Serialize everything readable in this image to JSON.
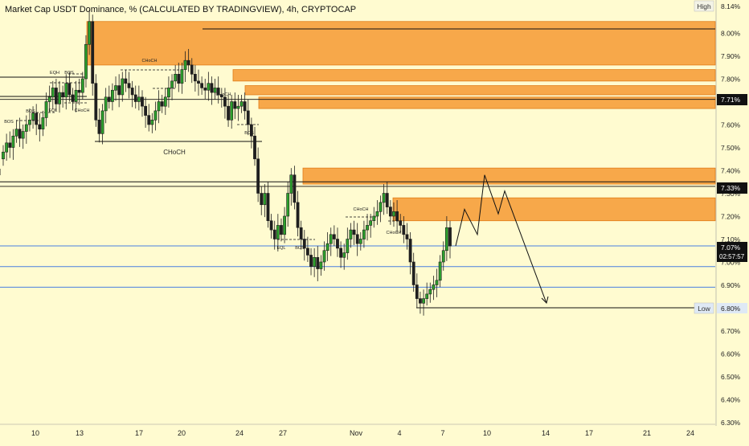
{
  "header": {
    "title": "Market Cap USDT Dominance, % (CALCULATED BY TRADINGVIEW), 4h, CRYPTOCAP"
  },
  "colors": {
    "background": "#fffbd0",
    "zone": "#f7a84a",
    "zone_border": "#e07c18",
    "candle": "#1f1f1f",
    "blue_line": "#4a7fe0",
    "axis_text": "#222222"
  },
  "chart_data": {
    "type": "candlestick",
    "symbol": "USDT.D",
    "timeframe": "4h",
    "ylim": [
      6.3,
      8.16
    ],
    "y_ticks": [
      "8.00%",
      "7.90%",
      "7.80%",
      "7.60%",
      "7.50%",
      "7.40%",
      "7.30%",
      "7.20%",
      "7.10%",
      "7.00%",
      "6.90%",
      "6.70%",
      "6.60%",
      "6.50%",
      "6.40%",
      "6.30%"
    ],
    "x_ticks": [
      "10",
      "13",
      "17",
      "20",
      "24",
      "27",
      "Nov",
      "4",
      "7",
      "10",
      "14",
      "17",
      "21",
      "24"
    ],
    "price_labels": {
      "high_label": "High",
      "high_value": "8.14%",
      "low_label": "Low",
      "low_value": "6.80%",
      "level_1": "7.71%",
      "level_2": "7.33%",
      "current": "7.07%",
      "countdown": "02:57:57"
    },
    "zones": [
      {
        "from": 7.86,
        "to": 8.05
      },
      {
        "from": 7.79,
        "to": 7.84
      },
      {
        "from": 7.73,
        "to": 7.77
      },
      {
        "from": 7.67,
        "to": 7.72
      },
      {
        "from": 7.34,
        "to": 7.41
      },
      {
        "from": 7.18,
        "to": 7.28
      }
    ],
    "horizontal_levels": [
      {
        "value": 7.71,
        "style": "black"
      },
      {
        "value": 7.33,
        "style": "black"
      },
      {
        "value": 7.35,
        "style": "black"
      },
      {
        "value": 7.07,
        "style": "blue"
      },
      {
        "value": 6.98,
        "style": "blue"
      },
      {
        "value": 6.89,
        "style": "blue"
      }
    ],
    "annotations": [
      {
        "text": "BOS"
      },
      {
        "text": "BOS"
      },
      {
        "text": "EQH"
      },
      {
        "text": "BOS"
      },
      {
        "text": "EQL"
      },
      {
        "text": "CHoCH"
      },
      {
        "text": "CHoCH"
      },
      {
        "text": "CHoCH"
      },
      {
        "text": "BOS"
      },
      {
        "text": "CHoCH"
      },
      {
        "text": "EQL"
      },
      {
        "text": "BOS"
      },
      {
        "text": "CHoCH"
      },
      {
        "text": "CHoCH"
      }
    ],
    "projection_path": [
      7.07,
      7.23,
      7.12,
      7.38,
      7.21,
      7.31,
      6.82
    ],
    "candles_close": [
      7.48,
      7.52,
      7.5,
      7.55,
      7.58,
      7.54,
      7.57,
      7.6,
      7.62,
      7.65,
      7.6,
      7.58,
      7.63,
      7.7,
      7.72,
      7.76,
      7.69,
      7.74,
      7.72,
      7.78,
      7.73,
      7.7,
      7.75,
      7.74,
      7.8,
      7.95,
      8.05,
      7.78,
      7.62,
      7.56,
      7.66,
      7.72,
      7.7,
      7.75,
      7.77,
      7.73,
      7.8,
      7.78,
      7.76,
      7.73,
      7.7,
      7.72,
      7.68,
      7.64,
      7.6,
      7.62,
      7.66,
      7.7,
      7.68,
      7.72,
      7.76,
      7.79,
      7.82,
      7.78,
      7.84,
      7.88,
      7.86,
      7.82,
      7.79,
      7.78,
      7.76,
      7.75,
      7.78,
      7.74,
      7.76,
      7.73,
      7.72,
      7.68,
      7.62,
      7.7,
      7.67,
      7.68,
      7.7,
      7.66,
      7.6,
      7.55,
      7.45,
      7.3,
      7.25,
      7.3,
      7.18,
      7.14,
      7.1,
      7.16,
      7.12,
      7.2,
      7.3,
      7.38,
      7.26,
      7.15,
      7.1,
      7.06,
      7.03,
      6.98,
      7.02,
      6.97,
      7.0,
      7.05,
      7.08,
      7.12,
      7.1,
      7.06,
      7.02,
      7.04,
      7.1,
      7.14,
      7.12,
      7.08,
      7.1,
      7.14,
      7.16,
      7.18,
      7.2,
      7.22,
      7.26,
      7.3,
      7.24,
      7.2,
      7.22,
      7.18,
      7.16,
      7.12,
      7.1,
      7.0,
      6.9,
      6.84,
      6.82,
      6.84,
      6.86,
      6.88,
      6.9,
      6.92,
      7.0,
      7.05,
      7.15,
      7.07
    ]
  }
}
